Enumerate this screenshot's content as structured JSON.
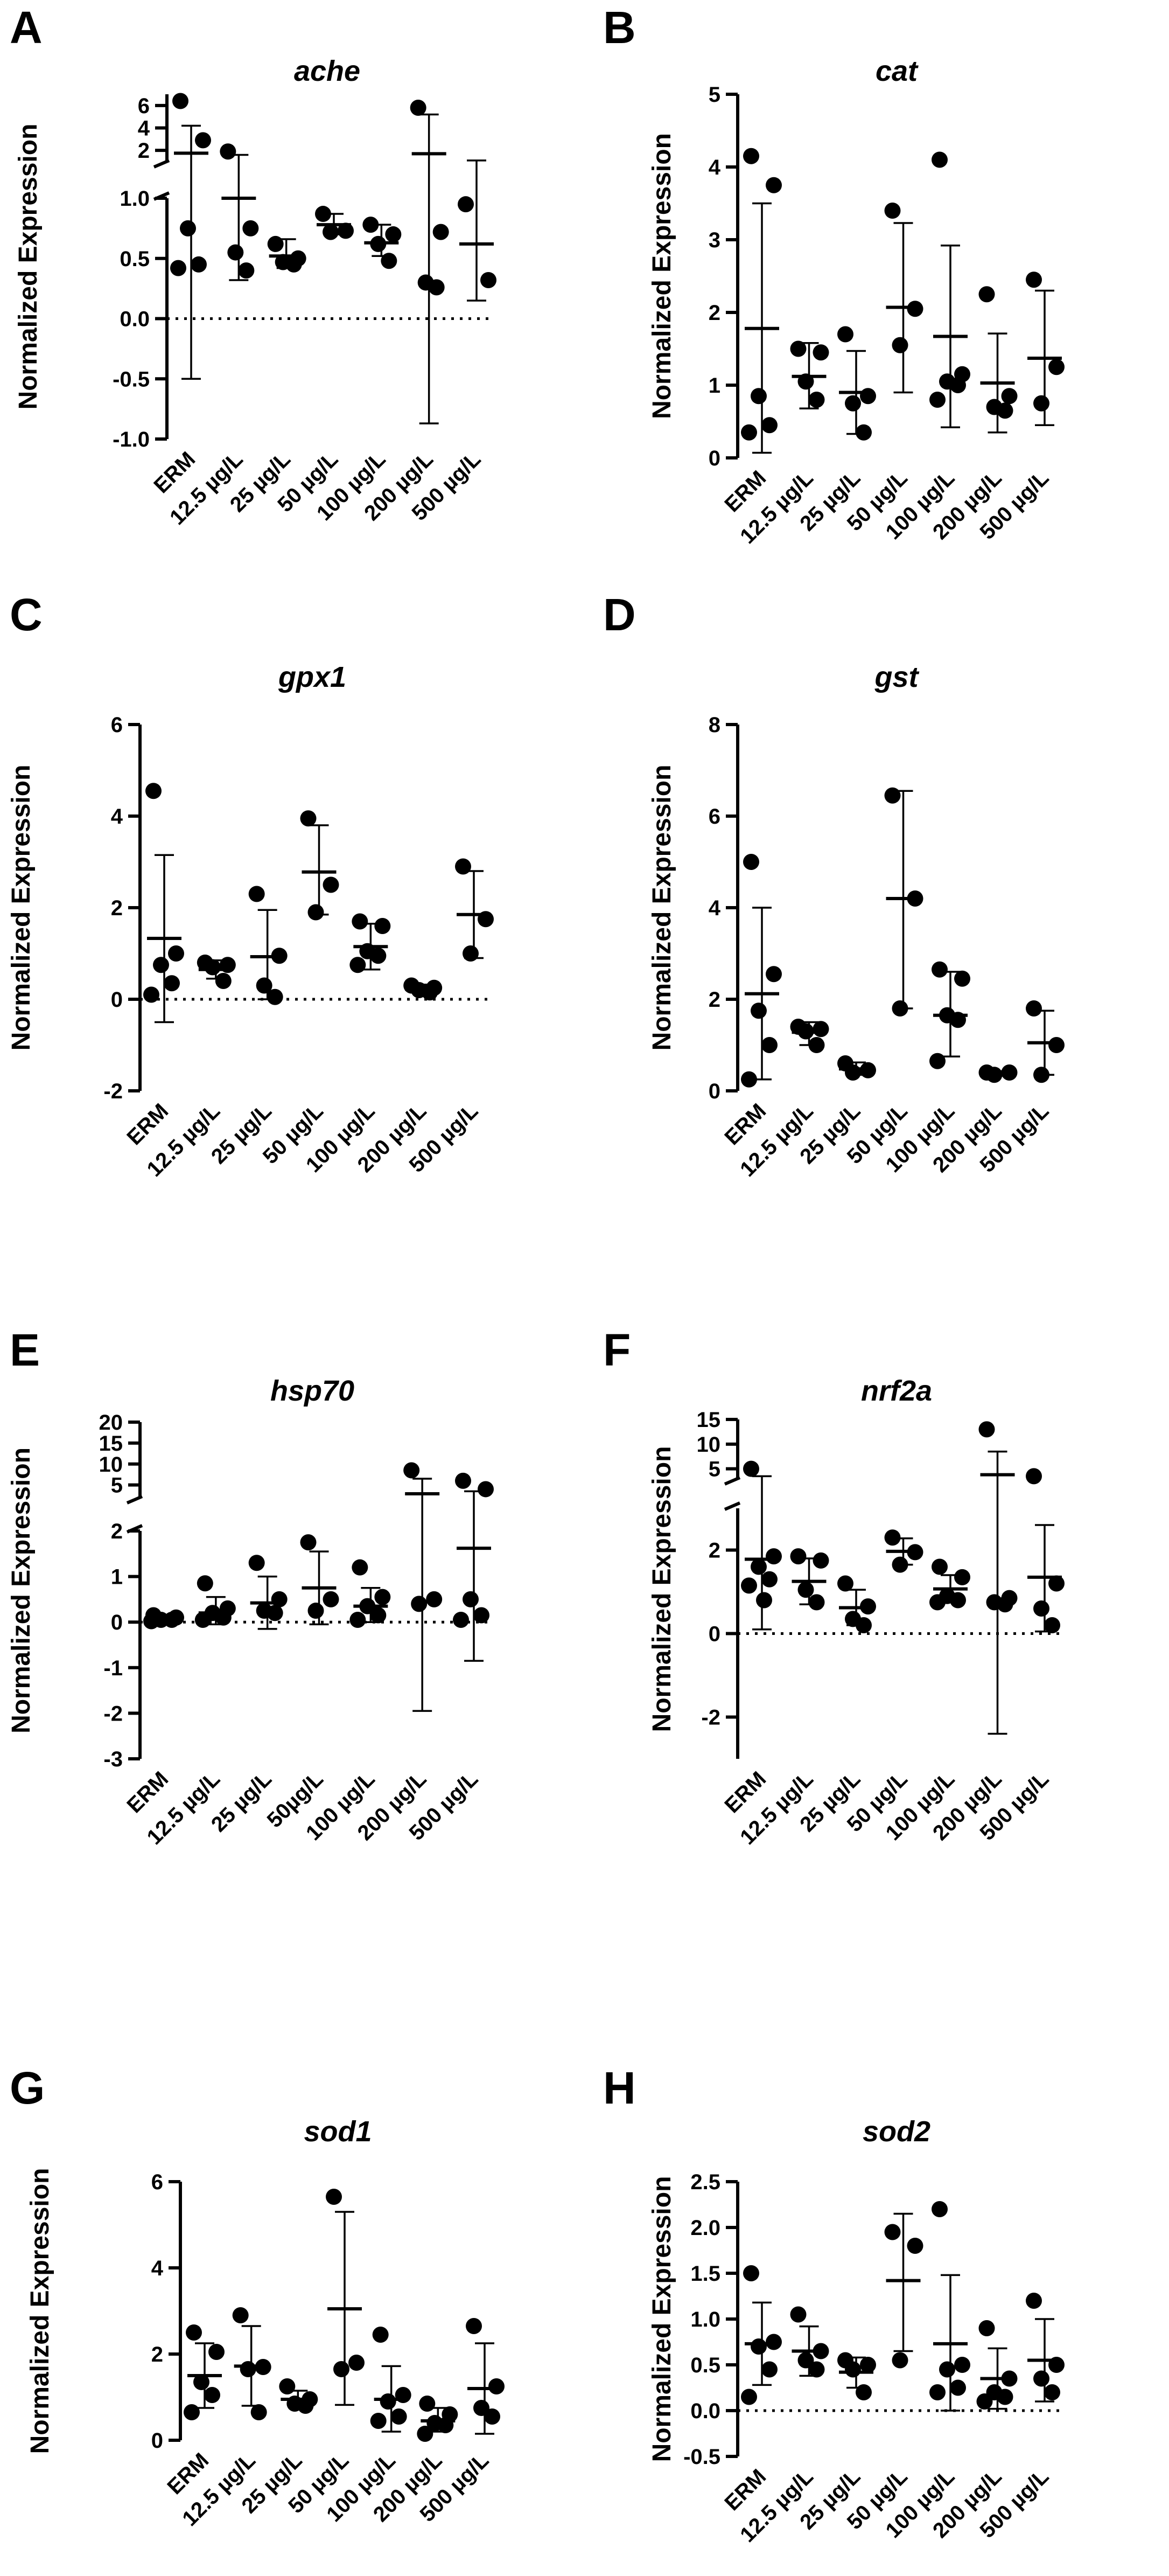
{
  "chart_data": [
    {
      "type": "scatter",
      "panel_letter": "A",
      "title": "ache",
      "ylabel": "Normalized Expression",
      "categories": [
        "ERM",
        "12.5 µg/L",
        "25 µg/L",
        "50 µg/L",
        "100 µg/L",
        "200 µg/L",
        "500 µg/L"
      ],
      "broken_axis": true,
      "lower_range": [
        -1.0,
        1.0
      ],
      "upper_range": [
        1.0,
        7.0
      ],
      "lower_ticks": [
        -1.0,
        -0.5,
        0.0,
        0.5,
        1.0
      ],
      "lower_tick_labels": [
        "-1.0",
        "-0.5",
        "0.0",
        "0.5",
        "1.0"
      ],
      "upper_ticks": [
        2,
        4,
        6
      ],
      "upper_tick_labels": [
        "2",
        "4",
        "6"
      ],
      "dotted_zero_line": true,
      "groups": [
        {
          "points": [
            6.4,
            2.9,
            0.75,
            0.45,
            0.42
          ],
          "mean": 1.75,
          "sd_low": -0.5,
          "sd_high": 4.2
        },
        {
          "points": [
            1.9,
            0.75,
            0.55,
            0.4
          ],
          "mean": 1.0,
          "sd_low": 0.32,
          "sd_high": 1.6
        },
        {
          "points": [
            0.62,
            0.5,
            0.47,
            0.45
          ],
          "mean": 0.52,
          "sd_low": 0.42,
          "sd_high": 0.66
        },
        {
          "points": [
            0.87,
            0.73,
            0.72
          ],
          "mean": 0.78,
          "sd_low": 0.7,
          "sd_high": 0.87
        },
        {
          "points": [
            0.78,
            0.7,
            0.62,
            0.48
          ],
          "mean": 0.63,
          "sd_low": 0.52,
          "sd_high": 0.78
        },
        {
          "points": [
            5.8,
            0.72,
            0.3,
            0.26
          ],
          "mean": 1.7,
          "sd_low": -0.87,
          "sd_high": 5.2
        },
        {
          "points": [
            0.95,
            0.32
          ],
          "mean": 0.62,
          "sd_low": 0.15,
          "sd_high": 1.1
        }
      ]
    },
    {
      "type": "scatter",
      "panel_letter": "B",
      "title": "cat",
      "ylabel": "Normalized Expression",
      "categories": [
        "ERM",
        "12.5 µg/L",
        "25 µg/L",
        "50 µg/L",
        "100 µg/L",
        "200 µg/L",
        "500 µg/L"
      ],
      "ylim": [
        0,
        5
      ],
      "yticks": [
        0,
        1,
        2,
        3,
        4,
        5
      ],
      "ytick_labels": [
        "0",
        "1",
        "2",
        "3",
        "4",
        "5"
      ],
      "dotted_zero_line": false,
      "groups": [
        {
          "points": [
            4.15,
            3.75,
            0.85,
            0.45,
            0.35
          ],
          "mean": 1.78,
          "sd_low": 0.07,
          "sd_high": 3.5
        },
        {
          "points": [
            1.5,
            1.45,
            1.05,
            0.8
          ],
          "mean": 1.12,
          "sd_low": 0.68,
          "sd_high": 1.58
        },
        {
          "points": [
            1.7,
            0.85,
            0.75,
            0.35
          ],
          "mean": 0.9,
          "sd_low": 0.33,
          "sd_high": 1.47
        },
        {
          "points": [
            3.4,
            2.05,
            1.55
          ],
          "mean": 2.07,
          "sd_low": 0.9,
          "sd_high": 3.23
        },
        {
          "points": [
            4.1,
            1.15,
            1.05,
            1.0,
            0.8
          ],
          "mean": 1.67,
          "sd_low": 0.42,
          "sd_high": 2.92
        },
        {
          "points": [
            2.25,
            0.85,
            0.7,
            0.65
          ],
          "mean": 1.03,
          "sd_low": 0.35,
          "sd_high": 1.71
        },
        {
          "points": [
            2.45,
            1.25,
            0.75
          ],
          "mean": 1.37,
          "sd_low": 0.45,
          "sd_high": 2.3
        }
      ]
    },
    {
      "type": "scatter",
      "panel_letter": "C",
      "title": "gpx1",
      "ylabel": "Normalized Expression",
      "categories": [
        "ERM",
        "12.5 µg/L",
        "25 µg/L",
        "50 µg/L",
        "100 µg/L",
        "200 µg/L",
        "500 µg/L"
      ],
      "ylim": [
        -2,
        6
      ],
      "yticks": [
        -2,
        0,
        2,
        4,
        6
      ],
      "ytick_labels": [
        "-2",
        "0",
        "2",
        "4",
        "6"
      ],
      "dotted_zero_line": true,
      "groups": [
        {
          "points": [
            4.55,
            1.0,
            0.75,
            0.35,
            0.1
          ],
          "mean": 1.33,
          "sd_low": -0.5,
          "sd_high": 3.15
        },
        {
          "points": [
            0.8,
            0.75,
            0.7,
            0.4
          ],
          "mean": 0.65,
          "sd_low": 0.45,
          "sd_high": 0.85
        },
        {
          "points": [
            2.3,
            0.95,
            0.3,
            0.05
          ],
          "mean": 0.93,
          "sd_low": 0.0,
          "sd_high": 1.95
        },
        {
          "points": [
            3.95,
            2.5,
            1.9
          ],
          "mean": 2.78,
          "sd_low": 1.85,
          "sd_high": 3.8
        },
        {
          "points": [
            1.7,
            1.6,
            1.05,
            0.95,
            0.75
          ],
          "mean": 1.15,
          "sd_low": 0.65,
          "sd_high": 1.65
        },
        {
          "points": [
            0.3,
            0.25,
            0.2,
            0.15
          ],
          "mean": 0.22,
          "sd_low": 0.15,
          "sd_high": 0.32
        },
        {
          "points": [
            2.9,
            1.75,
            1.0
          ],
          "mean": 1.85,
          "sd_low": 0.9,
          "sd_high": 2.8
        }
      ]
    },
    {
      "type": "scatter",
      "panel_letter": "D",
      "title": "gst",
      "ylabel": "Normalized Expression",
      "categories": [
        "ERM",
        "12.5 µg/L",
        "25 µg/L",
        "50 µg/L",
        "100 µg/L",
        "200 µg/L",
        "500 µg/L"
      ],
      "ylim": [
        0,
        8
      ],
      "yticks": [
        0,
        2,
        4,
        6,
        8
      ],
      "ytick_labels": [
        "0",
        "2",
        "4",
        "6",
        "8"
      ],
      "dotted_zero_line": false,
      "groups": [
        {
          "points": [
            5.0,
            2.55,
            1.75,
            1.0,
            0.25
          ],
          "mean": 2.12,
          "sd_low": 0.25,
          "sd_high": 4.0
        },
        {
          "points": [
            1.4,
            1.35,
            1.3,
            1.0
          ],
          "mean": 1.28,
          "sd_low": 1.0,
          "sd_high": 1.5
        },
        {
          "points": [
            0.6,
            0.45,
            0.4
          ],
          "mean": 0.48,
          "sd_low": 0.35,
          "sd_high": 0.62
        },
        {
          "points": [
            6.45,
            4.2,
            1.8
          ],
          "mean": 4.2,
          "sd_low": 1.8,
          "sd_high": 6.55
        },
        {
          "points": [
            2.65,
            2.45,
            1.65,
            1.55,
            0.65
          ],
          "mean": 1.65,
          "sd_low": 0.75,
          "sd_high": 2.6
        },
        {
          "points": [
            0.4,
            0.4,
            0.35
          ],
          "mean": 0.38,
          "sd_low": 0.33,
          "sd_high": 0.43
        },
        {
          "points": [
            1.8,
            1.0,
            0.35
          ],
          "mean": 1.05,
          "sd_low": 0.35,
          "sd_high": 1.75
        }
      ]
    },
    {
      "type": "scatter",
      "panel_letter": "E",
      "title": "hsp70",
      "ylabel": "Normalized Expression",
      "categories": [
        "ERM",
        "12.5 µg/L",
        "25 µg/L",
        "50µg/L",
        "100 µg/L",
        "200 µg/L",
        "500 µg/L"
      ],
      "broken_axis": true,
      "lower_range": [
        -3,
        2
      ],
      "upper_range": [
        2,
        20
      ],
      "lower_ticks": [
        -3,
        -2,
        -1,
        0,
        1,
        2
      ],
      "lower_tick_labels": [
        "-3",
        "-2",
        "-1",
        "0",
        "1",
        "2"
      ],
      "upper_ticks": [
        5,
        10,
        15,
        20
      ],
      "upper_tick_labels": [
        "5",
        "10",
        "15",
        "20"
      ],
      "dotted_zero_line": true,
      "groups": [
        {
          "points": [
            0.15,
            0.1,
            0.05,
            0.05,
            0.02
          ],
          "mean": 0.07,
          "sd_low": 0.0,
          "sd_high": 0.15
        },
        {
          "points": [
            0.85,
            0.3,
            0.2,
            0.1,
            0.05
          ],
          "mean": 0.2,
          "sd_low": -0.05,
          "sd_high": 0.55
        },
        {
          "points": [
            1.3,
            0.5,
            0.25,
            0.2
          ],
          "mean": 0.42,
          "sd_low": -0.15,
          "sd_high": 1.0
        },
        {
          "points": [
            1.75,
            0.5,
            0.25
          ],
          "mean": 0.75,
          "sd_low": -0.05,
          "sd_high": 1.55
        },
        {
          "points": [
            1.2,
            0.55,
            0.35,
            0.15,
            0.05
          ],
          "mean": 0.35,
          "sd_low": 0.0,
          "sd_high": 0.75
        },
        {
          "points": [
            8.5,
            0.5,
            0.4
          ],
          "mean": 2.9,
          "sd_low": -1.95,
          "sd_high": 6.5
        },
        {
          "points": [
            6.0,
            4.0,
            0.5,
            0.15,
            0.05
          ],
          "mean": 1.62,
          "sd_low": -0.85,
          "sd_high": 3.5
        }
      ]
    },
    {
      "type": "scatter",
      "panel_letter": "F",
      "title": "nrf2a",
      "ylabel": "Normalized Expression",
      "categories": [
        "ERM",
        "12.5 µg/L",
        "25 µg/L",
        "50 µg/L",
        "100 µg/L",
        "200 µg/L",
        "500 µg/L"
      ],
      "broken_axis": true,
      "lower_range": [
        -3,
        3
      ],
      "upper_range": [
        3,
        15
      ],
      "lower_ticks": [
        -2,
        0,
        2
      ],
      "lower_tick_labels": [
        "-2",
        "0",
        "2"
      ],
      "upper_ticks": [
        5,
        10,
        15
      ],
      "upper_tick_labels": [
        "5",
        "10",
        "15"
      ],
      "dotted_zero_line": true,
      "groups": [
        {
          "points": [
            5.0,
            1.85,
            1.6,
            1.3,
            1.15,
            0.8
          ],
          "mean": 1.78,
          "sd_low": 0.1,
          "sd_high": 3.5
        },
        {
          "points": [
            1.85,
            1.75,
            1.05,
            0.75
          ],
          "mean": 1.25,
          "sd_low": 0.7,
          "sd_high": 1.8
        },
        {
          "points": [
            1.2,
            0.65,
            0.35,
            0.2
          ],
          "mean": 0.62,
          "sd_low": 0.2,
          "sd_high": 1.05
        },
        {
          "points": [
            2.3,
            1.95,
            1.65
          ],
          "mean": 1.97,
          "sd_low": 1.65,
          "sd_high": 2.28
        },
        {
          "points": [
            1.6,
            1.35,
            0.9,
            0.8,
            0.75
          ],
          "mean": 1.07,
          "sd_low": 0.75,
          "sd_high": 1.4
        },
        {
          "points": [
            13.0,
            0.85,
            0.75,
            0.7
          ],
          "mean": 3.8,
          "sd_low": -2.4,
          "sd_high": 8.5
        },
        {
          "points": [
            3.5,
            1.2,
            0.6,
            0.2
          ],
          "mean": 1.35,
          "sd_low": 0.05,
          "sd_high": 2.6
        }
      ]
    },
    {
      "type": "scatter",
      "panel_letter": "G",
      "title": "sod1",
      "ylabel": "Normalized Expression",
      "categories": [
        "ERM",
        "12.5 µg/L",
        "25 µg/L",
        "50 µg/L",
        "100 µg/L",
        "200 µg/L",
        "500 µg/L"
      ],
      "ylim": [
        0,
        6
      ],
      "yticks": [
        0,
        2,
        4,
        6
      ],
      "ytick_labels": [
        "0",
        "2",
        "4",
        "6"
      ],
      "dotted_zero_line": false,
      "groups": [
        {
          "points": [
            2.5,
            2.05,
            1.35,
            1.05,
            0.65
          ],
          "mean": 1.5,
          "sd_low": 0.75,
          "sd_high": 2.25
        },
        {
          "points": [
            2.9,
            1.7,
            1.65,
            0.65
          ],
          "mean": 1.72,
          "sd_low": 0.8,
          "sd_high": 2.65
        },
        {
          "points": [
            1.25,
            0.95,
            0.85,
            0.8
          ],
          "mean": 0.95,
          "sd_low": 0.8,
          "sd_high": 1.15
        },
        {
          "points": [
            5.65,
            1.8,
            1.65
          ],
          "mean": 3.05,
          "sd_low": 0.82,
          "sd_high": 5.3
        },
        {
          "points": [
            2.45,
            1.05,
            0.9,
            0.55,
            0.45
          ],
          "mean": 0.95,
          "sd_low": 0.2,
          "sd_high": 1.72
        },
        {
          "points": [
            0.85,
            0.6,
            0.4,
            0.35,
            0.15
          ],
          "mean": 0.45,
          "sd_low": 0.2,
          "sd_high": 0.75
        },
        {
          "points": [
            2.65,
            1.25,
            0.75,
            0.55
          ],
          "mean": 1.2,
          "sd_low": 0.15,
          "sd_high": 2.25
        }
      ]
    },
    {
      "type": "scatter",
      "panel_letter": "H",
      "title": "sod2",
      "ylabel": "Normalized Expression",
      "categories": [
        "ERM",
        "12.5 µg/L",
        "25 µg/L",
        "50 µg/L",
        "100 µg/L",
        "200 µg/L",
        "500 µg/L"
      ],
      "ylim": [
        -0.5,
        2.5
      ],
      "yticks": [
        -0.5,
        0.0,
        0.5,
        1.0,
        1.5,
        2.0,
        2.5
      ],
      "ytick_labels": [
        "-0.5",
        "0.0",
        "0.5",
        "1.0",
        "1.5",
        "2.0",
        "2.5"
      ],
      "dotted_zero_line": true,
      "groups": [
        {
          "points": [
            1.5,
            0.75,
            0.7,
            0.45,
            0.15
          ],
          "mean": 0.73,
          "sd_low": 0.28,
          "sd_high": 1.18
        },
        {
          "points": [
            1.05,
            0.65,
            0.55,
            0.45
          ],
          "mean": 0.65,
          "sd_low": 0.38,
          "sd_high": 0.92
        },
        {
          "points": [
            0.55,
            0.5,
            0.45,
            0.2
          ],
          "mean": 0.42,
          "sd_low": 0.25,
          "sd_high": 0.58
        },
        {
          "points": [
            1.95,
            1.8,
            0.55
          ],
          "mean": 1.42,
          "sd_low": 0.65,
          "sd_high": 2.15
        },
        {
          "points": [
            2.2,
            0.5,
            0.45,
            0.25,
            0.2
          ],
          "mean": 0.73,
          "sd_low": 0.0,
          "sd_high": 1.48
        },
        {
          "points": [
            0.9,
            0.35,
            0.2,
            0.15,
            0.1
          ],
          "mean": 0.35,
          "sd_low": 0.02,
          "sd_high": 0.68
        },
        {
          "points": [
            1.2,
            0.5,
            0.35,
            0.2
          ],
          "mean": 0.55,
          "sd_low": 0.1,
          "sd_high": 1.0
        }
      ]
    }
  ]
}
